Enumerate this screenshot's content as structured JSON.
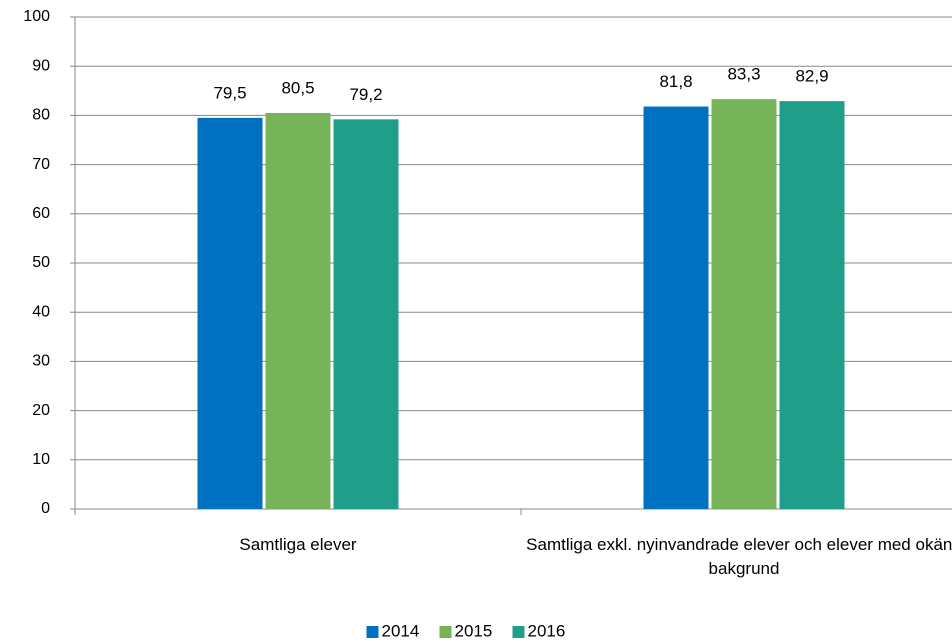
{
  "chart_data": {
    "type": "bar",
    "categories": [
      "Samtliga elever",
      "Samtliga exkl. nyinvandrade elever och elever med okänd bakgrund"
    ],
    "series": [
      {
        "name": "2014",
        "color": "#0070c0",
        "values": [
          79.5,
          81.8
        ],
        "value_labels": [
          "79,5",
          "81,8"
        ]
      },
      {
        "name": "2015",
        "color": "#77b358",
        "values": [
          80.5,
          83.3
        ],
        "value_labels": [
          "80,5",
          "83,3"
        ]
      },
      {
        "name": "2016",
        "color": "#1f9e89",
        "values": [
          79.2,
          82.9
        ],
        "value_labels": [
          "79,2",
          "82,9"
        ]
      }
    ],
    "ylim": [
      0,
      100
    ],
    "yticks": [
      0,
      10,
      20,
      30,
      40,
      50,
      60,
      70,
      80,
      90,
      100
    ],
    "grid": true,
    "legend": "bottom"
  }
}
